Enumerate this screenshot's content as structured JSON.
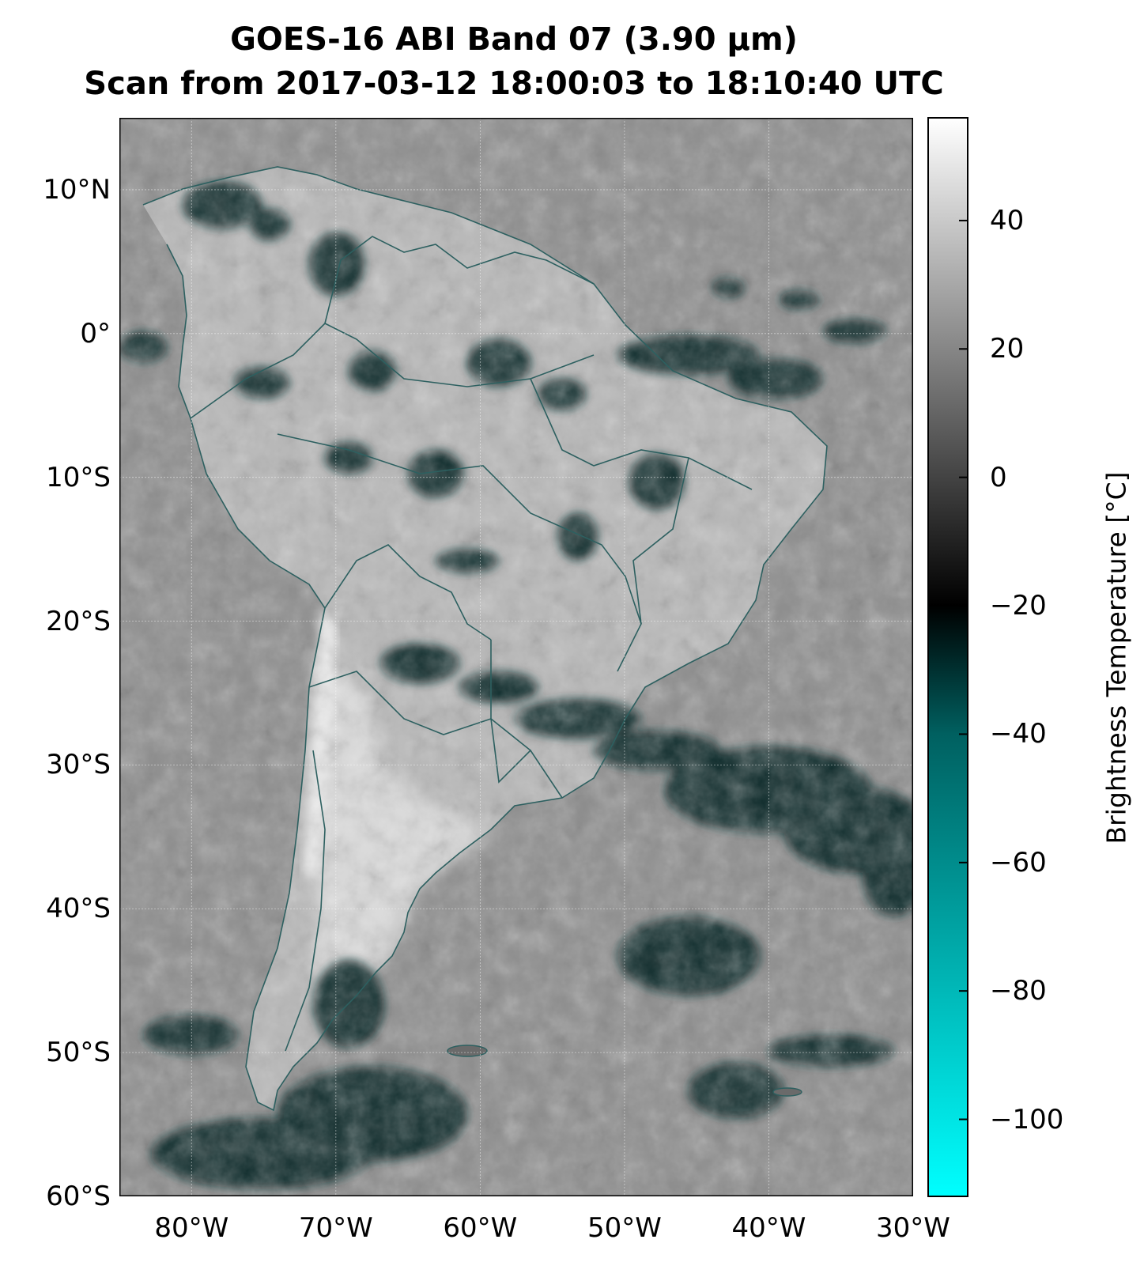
{
  "title": {
    "line1": "GOES-16 ABI Band 07 (3.90 µm)",
    "line2": "Scan from 2017-03-12 18:00:03 to 18:10:40 UTC"
  },
  "map": {
    "extent_lon": [
      -85,
      -30
    ],
    "extent_lat": [
      -60,
      15
    ],
    "lat_ticks": [
      {
        "value": 10,
        "label": "10°N"
      },
      {
        "value": 0,
        "label": "0°"
      },
      {
        "value": -10,
        "label": "10°S"
      },
      {
        "value": -20,
        "label": "20°S"
      },
      {
        "value": -30,
        "label": "30°S"
      },
      {
        "value": -40,
        "label": "40°S"
      },
      {
        "value": -50,
        "label": "50°S"
      },
      {
        "value": -60,
        "label": "60°S"
      }
    ],
    "lon_ticks": [
      {
        "value": -80,
        "label": "80°W"
      },
      {
        "value": -70,
        "label": "70°W"
      },
      {
        "value": -60,
        "label": "60°W"
      },
      {
        "value": -50,
        "label": "50°W"
      },
      {
        "value": -40,
        "label": "40°W"
      },
      {
        "value": -30,
        "label": "30°W"
      }
    ],
    "gridlines": true,
    "background_color": "#8d8d8d",
    "land_color": "#b8b8b8",
    "cloud_cold_color": "#062a2a",
    "border_color": "#2d6060",
    "coast_color": "#2d6060"
  },
  "colorbar": {
    "label": "Brightness Temperature [°C]",
    "range": [
      -112,
      56
    ],
    "ticks": [
      40,
      20,
      0,
      -20,
      -40,
      -60,
      -80,
      -100
    ],
    "tick_labels": [
      "40",
      "20",
      "0",
      "−20",
      "−40",
      "−60",
      "−80",
      "−100"
    ],
    "colors": {
      "cold_end": "#00ffff",
      "teal": "#006060",
      "black_at_minus20": "#000000",
      "warm_end": "#ffffff"
    }
  }
}
